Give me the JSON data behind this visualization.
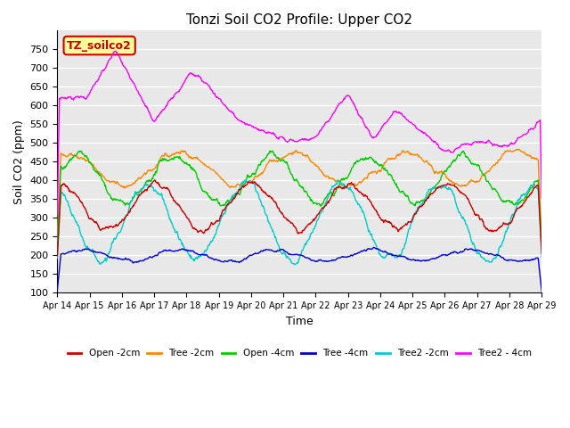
{
  "title": "Tonzi Soil CO2 Profile: Upper CO2",
  "xlabel": "Time",
  "ylabel": "Soil CO2 (ppm)",
  "ylim": [
    100,
    800
  ],
  "yticks": [
    100,
    150,
    200,
    250,
    300,
    350,
    400,
    450,
    500,
    550,
    600,
    650,
    700,
    750
  ],
  "xtick_labels": [
    "Apr 14",
    "Apr 15",
    "Apr 16",
    "Apr 17",
    "Apr 18",
    "Apr 19",
    "Apr 20",
    "Apr 21",
    "Apr 22",
    "Apr 23",
    "Apr 24",
    "Apr 25",
    "Apr 26",
    "Apr 27",
    "Apr 28",
    "Apr 29"
  ],
  "legend_labels": [
    "Open -2cm",
    "Tree -2cm",
    "Open -4cm",
    "Tree -4cm",
    "Tree2 -2cm",
    "Tree2 - 4cm"
  ],
  "legend_colors": [
    "#cc0000",
    "#ff8800",
    "#00cc00",
    "#0000cc",
    "#00cccc",
    "#ff00ff"
  ],
  "annotation_text": "TZ_soilco2",
  "annotation_color": "#cc0000",
  "annotation_bg": "#ffff99",
  "annotation_border": "#cc0000",
  "background_color": "#e8e8e8",
  "grid_color": "#ffffff",
  "n_points": 960
}
